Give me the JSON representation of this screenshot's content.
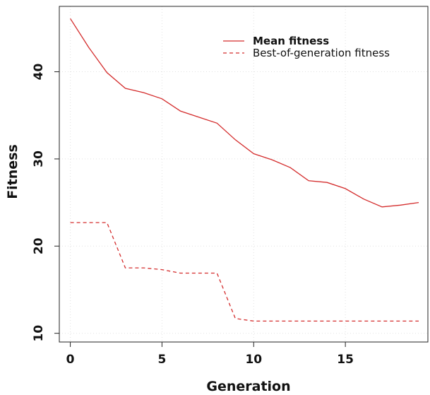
{
  "chart_data": {
    "type": "line",
    "title": "",
    "xlabel": "Generation",
    "ylabel": "Fitness",
    "xlim": [
      -0.6,
      19.5
    ],
    "ylim": [
      9,
      47.5
    ],
    "xticks": [
      0,
      5,
      10,
      15
    ],
    "yticks": [
      10,
      20,
      30,
      40
    ],
    "grid": true,
    "legend_position": "top-right",
    "x": [
      0,
      1,
      2,
      3,
      4,
      5,
      6,
      7,
      8,
      9,
      10,
      11,
      12,
      13,
      14,
      15,
      16,
      17,
      18,
      19
    ],
    "series": [
      {
        "name": "Mean fitness",
        "style": "solid",
        "color": "#d42c2c",
        "values": [
          46.1,
          42.8,
          39.9,
          38.1,
          37.6,
          36.9,
          35.5,
          34.8,
          34.1,
          32.2,
          30.6,
          29.9,
          29.0,
          27.5,
          27.3,
          26.6,
          25.4,
          24.5,
          24.7,
          25.0
        ]
      },
      {
        "name": "Best-of-generation fitness",
        "style": "dashed",
        "color": "#d42c2c",
        "values": [
          22.7,
          22.7,
          22.7,
          17.5,
          17.5,
          17.3,
          16.9,
          16.9,
          16.9,
          11.7,
          11.4,
          11.4,
          11.4,
          11.4,
          11.4,
          11.4,
          11.4,
          11.4,
          11.4,
          11.4
        ]
      }
    ]
  }
}
